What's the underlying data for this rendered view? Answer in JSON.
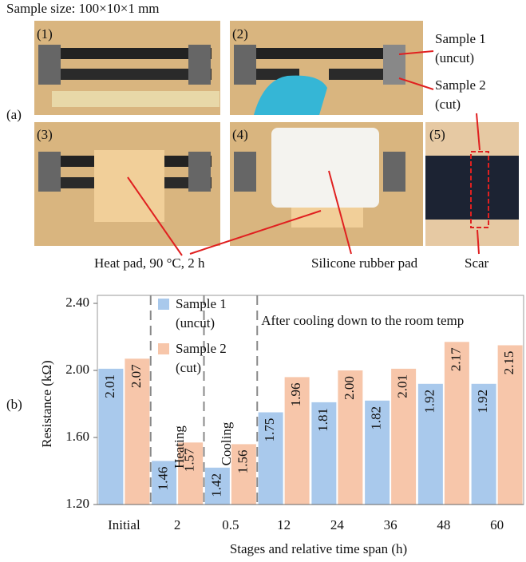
{
  "figure_a": {
    "title": "Sample size: 100×10×1 mm",
    "panel_label": "(a)",
    "photo_labels": [
      "(1)",
      "(2)",
      "(3)",
      "(4)",
      "(5)"
    ],
    "annotations": [
      "Sample 1",
      "(uncut)",
      "Sample 2",
      "(cut)",
      "Heat pad, 90 °C, 2 h",
      "Silicone rubber pad",
      "Scar"
    ]
  },
  "chart_data": {
    "type": "bar",
    "panel_label": "(b)",
    "x_label": "Stages and relative time span (h)",
    "y_label": "Resistance (kΩ)",
    "categories": [
      "Initial",
      "2",
      "0.5",
      "12",
      "24",
      "36",
      "48",
      "60"
    ],
    "series": [
      {
        "name": "Sample 1 (uncut)",
        "color": "#a9c9ec",
        "values": [
          2.01,
          1.46,
          1.42,
          1.75,
          1.81,
          1.82,
          1.92,
          1.92
        ],
        "value_labels": [
          "2.01",
          "1.46",
          "1.42",
          "1.75",
          "1.81",
          "1.82",
          "1.92",
          "1.92"
        ]
      },
      {
        "name": "Sample 2 (cut)",
        "color": "#f7c6aa",
        "values": [
          2.07,
          1.57,
          1.56,
          1.96,
          2,
          2.01,
          2.17,
          2.15
        ],
        "value_labels": [
          "2.07",
          "1.57",
          "1.56",
          "1.96",
          "2.00",
          "2.01",
          "2.17",
          "2.15"
        ]
      }
    ],
    "ylim": [
      1.2,
      2.4
    ],
    "yticks": [
      {
        "value": 1.2,
        "label": "1.20"
      },
      {
        "value": 1.6,
        "label": "1.60"
      },
      {
        "value": 2,
        "label": "2.00"
      },
      {
        "value": 2.4,
        "label": "2.40"
      }
    ],
    "annotations": [
      "Heating",
      "Cooling",
      "After cooling down to the room temp"
    ]
  }
}
